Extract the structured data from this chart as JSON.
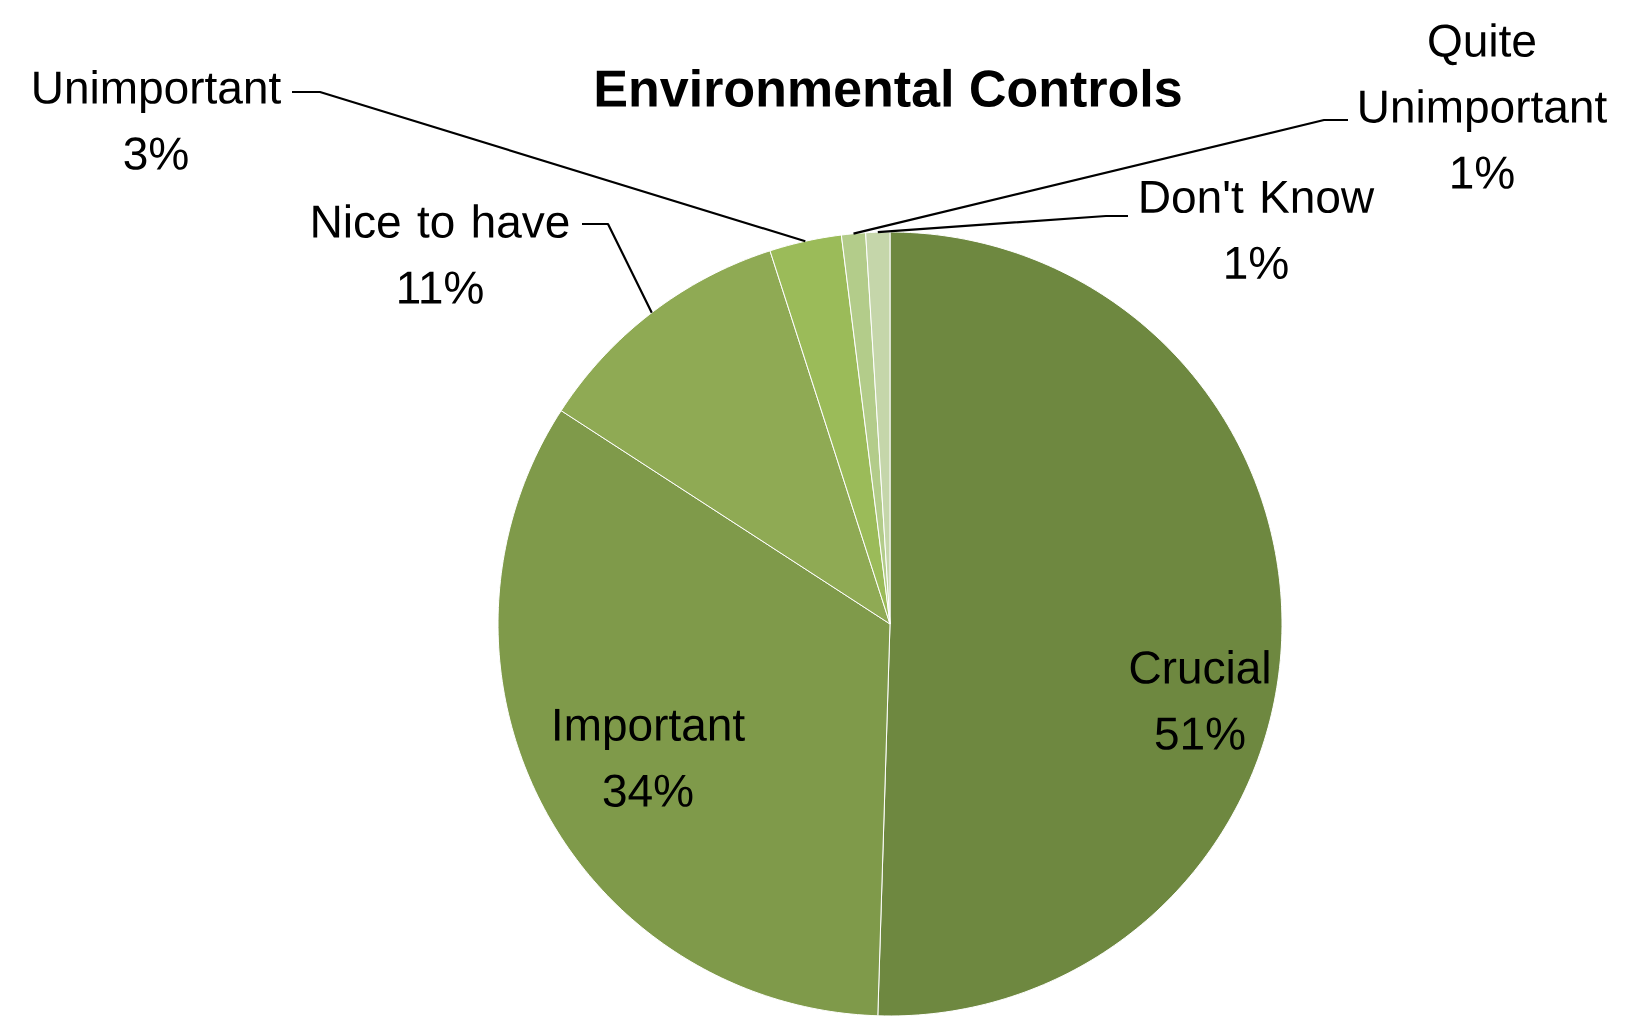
{
  "chart_data": {
    "type": "pie",
    "title": "Environmental Controls",
    "categories": [
      "Crucial",
      "Important",
      "Nice to have",
      "Unimportant",
      "Quite Unimportant",
      "Don't Know"
    ],
    "values": [
      51,
      34,
      11,
      3,
      1,
      1
    ],
    "value_labels": [
      "51%",
      "34%",
      "11%",
      "3%",
      "1%",
      "1%"
    ],
    "colors": [
      "#6e8840",
      "#7f9a4a",
      "#8faa54",
      "#9bbb59",
      "#b3cc8a",
      "#c5d6aa"
    ]
  }
}
